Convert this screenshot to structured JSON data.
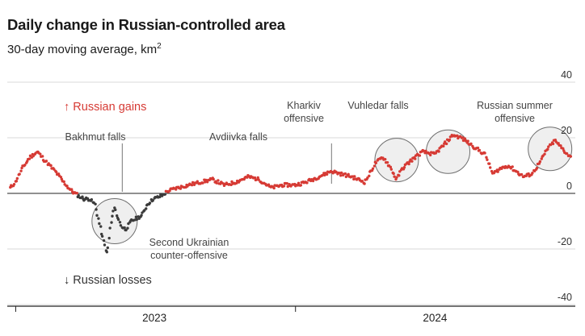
{
  "title": "Daily change in Russian-controlled area",
  "subtitle": "30-day moving average, km",
  "subtitle_superscript": "2",
  "colors": {
    "gain": "#d63a34",
    "loss": "#3b3b3b",
    "axis": "#222222",
    "grid": "#cccccc",
    "annotation": "#444444",
    "circle_stroke": "#6e6e6e",
    "circle_fill": "#efefef"
  },
  "labels": {
    "gains": "↑ Russian gains",
    "losses": "↓ Russian losses"
  },
  "annotations": [
    {
      "id": "bakhmut",
      "text": "Bakhmut falls"
    },
    {
      "id": "avdiivka",
      "text": "Avdiivka falls"
    },
    {
      "id": "kharkiv",
      "text": "Kharkiv offensive"
    },
    {
      "id": "vuhledar",
      "text": "Vuhledar falls"
    },
    {
      "id": "summer",
      "text": "Russian summer offensive"
    },
    {
      "id": "counter",
      "text": "Second Ukrainian counter-offensive"
    }
  ],
  "chart_data": {
    "type": "scatter",
    "title": "Daily change in Russian-controlled area",
    "subtitle": "30-day moving average, km²",
    "xlabel": "",
    "ylabel": "",
    "x_ticks": [
      "2023",
      "2024"
    ],
    "x_range": [
      "2022-12-21",
      "2024-12-31"
    ],
    "y_ticks": [
      40,
      20,
      0,
      -20,
      -40
    ],
    "ylim": [
      -40,
      40
    ],
    "grid": "horizontal",
    "zero_line": true,
    "series": [
      {
        "color_rule": "red when value >= 0, dark grey when value < 0",
        "x": [
          "2022-12-25",
          "2023-01-01",
          "2023-01-10",
          "2023-01-20",
          "2023-01-30",
          "2023-02-08",
          "2023-02-15",
          "2023-02-25",
          "2023-03-05",
          "2023-03-15",
          "2023-03-25",
          "2023-04-01",
          "2023-04-08",
          "2023-04-15",
          "2023-04-20",
          "2023-04-25",
          "2023-05-01",
          "2023-05-05",
          "2023-05-10",
          "2023-05-15",
          "2023-05-20",
          "2023-05-25",
          "2023-06-01",
          "2023-06-08",
          "2023-06-15",
          "2023-06-22",
          "2023-06-30",
          "2023-07-10",
          "2023-07-20",
          "2023-08-01",
          "2023-08-15",
          "2023-08-30",
          "2023-09-15",
          "2023-10-01",
          "2023-10-15",
          "2023-11-01",
          "2023-11-15",
          "2023-12-01",
          "2023-12-15",
          "2024-01-01",
          "2024-01-15",
          "2024-02-01",
          "2024-02-17",
          "2024-03-01",
          "2024-03-15",
          "2024-04-01",
          "2024-04-15",
          "2024-04-25",
          "2024-05-05",
          "2024-05-12",
          "2024-05-20",
          "2024-06-01",
          "2024-06-15",
          "2024-07-01",
          "2024-07-15",
          "2024-07-25",
          "2024-08-05",
          "2024-08-15",
          "2024-08-25",
          "2024-09-05",
          "2024-09-15",
          "2024-09-25",
          "2024-10-05",
          "2024-10-15",
          "2024-10-25",
          "2024-11-05",
          "2024-11-15",
          "2024-11-25",
          "2024-12-05",
          "2024-12-15",
          "2024-12-25"
        ],
        "y": [
          2,
          4,
          9,
          13,
          15,
          12,
          10,
          7,
          4,
          1,
          -1,
          -2,
          -2,
          -4,
          -10,
          -16,
          -22,
          -12,
          -5,
          -9,
          -12,
          -13,
          -10,
          -9,
          -8,
          -4,
          -2,
          -1,
          1,
          2,
          3,
          4,
          5,
          3,
          4,
          6,
          5,
          2,
          3,
          3,
          4,
          6,
          8,
          7,
          6,
          4,
          11,
          13,
          9,
          5,
          9,
          12,
          15,
          14,
          18,
          21,
          20,
          18,
          16,
          14,
          7,
          9,
          10,
          8,
          6,
          7,
          11,
          16,
          19,
          16,
          13
        ]
      }
    ]
  }
}
